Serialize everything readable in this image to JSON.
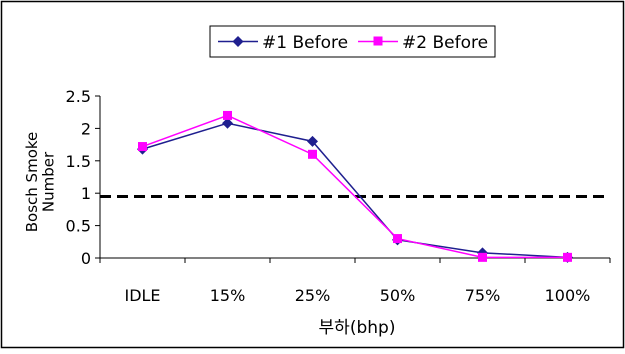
{
  "chart_data": {
    "type": "line",
    "categories": [
      "IDLE",
      "15%",
      "25%",
      "50%",
      "75%",
      "100%"
    ],
    "series": [
      {
        "name": "#1 Before",
        "values": [
          1.68,
          2.08,
          1.8,
          0.28,
          0.08,
          0.01
        ],
        "color": "#1f1f8f",
        "marker": "diamond"
      },
      {
        "name": "#2 Before",
        "values": [
          1.72,
          2.2,
          1.6,
          0.3,
          0.01,
          0.01
        ],
        "color": "#ff00ff",
        "marker": "square"
      }
    ],
    "reference_line": {
      "value": 0.95,
      "style": "dashed",
      "color": "#000000"
    },
    "xlabel": "부하(bhp)",
    "ylabel": "Bosch Smoke Number",
    "ylim": [
      0,
      2.5
    ],
    "yticks": [
      "0",
      "0.5",
      "1",
      "1.5",
      "2",
      "2.5"
    ],
    "legend_position": "top-center",
    "grid": false
  }
}
